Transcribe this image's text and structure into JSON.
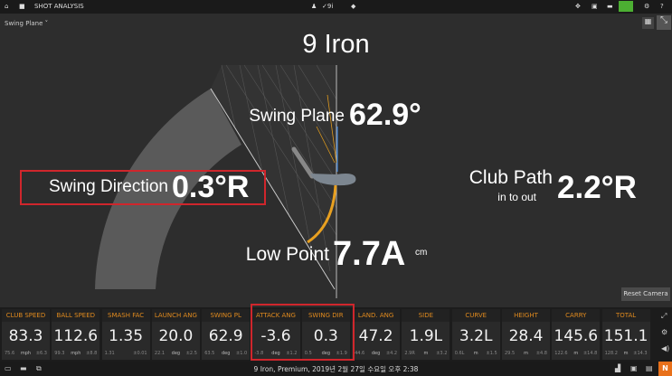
{
  "topbar": {
    "title": "SHOT ANALYSIS",
    "club_short": "9i"
  },
  "view_select": {
    "value": "Swing Plane"
  },
  "main": {
    "club_title": "9 Iron",
    "swing_plane": {
      "label": "Swing Plane",
      "value": "62.9°"
    },
    "swing_direction": {
      "label": "Swing Direction",
      "value": "0.3°R"
    },
    "club_path": {
      "label": "Club Path",
      "sub": "in to out",
      "value": "2.2°R"
    },
    "low_point": {
      "label": "Low Point",
      "value": "7.7A",
      "unit": "cm"
    },
    "reset_camera": "Reset Camera"
  },
  "tiles": [
    {
      "h": "CLUB SPEED",
      "v": "83.3",
      "a": "75.6",
      "u": "mph",
      "d": "±6.3"
    },
    {
      "h": "BALL SPEED",
      "v": "112.6",
      "a": "99.3",
      "u": "mph",
      "d": "±8.8"
    },
    {
      "h": "SMASH FAC",
      "v": "1.35",
      "a": "1.31",
      "u": "",
      "d": "±0.01"
    },
    {
      "h": "LAUNCH ANG",
      "v": "20.0",
      "a": "22.1",
      "u": "deg",
      "d": "±2.5"
    },
    {
      "h": "SWING PL",
      "v": "62.9",
      "a": "63.5",
      "u": "deg",
      "d": "±1.0"
    },
    {
      "h": "ATTACK ANG",
      "v": "-3.6",
      "a": "-3.8",
      "u": "deg",
      "d": "±1.2"
    },
    {
      "h": "SWING DIR",
      "v": "0.3",
      "a": "0.5",
      "u": "deg",
      "d": "±1.9"
    },
    {
      "h": "LAND. ANG",
      "v": "47.2",
      "a": "44.6",
      "u": "deg",
      "d": "±4.2"
    },
    {
      "h": "SIDE",
      "v": "1.9L",
      "a": "2.9R",
      "u": "m",
      "d": "±3.2"
    },
    {
      "h": "CURVE",
      "v": "3.2L",
      "a": "0.6L",
      "u": "m",
      "d": "±1.5"
    },
    {
      "h": "HEIGHT",
      "v": "28.4",
      "a": "29.5",
      "u": "m",
      "d": "±4.8"
    },
    {
      "h": "CARRY",
      "v": "145.6",
      "a": "122.6",
      "u": "m",
      "d": "±14.8"
    },
    {
      "h": "TOTAL",
      "v": "151.1",
      "a": "128.2",
      "u": "m",
      "d": "±14.3"
    }
  ],
  "status": {
    "text": "9 Iron, Premium, 2019년 2월 27일 수요일 오후 2:38",
    "badge": "N"
  },
  "colors": {
    "accent": "#e08a1e",
    "highlight": "#d0262c",
    "active": "#4caf32"
  }
}
